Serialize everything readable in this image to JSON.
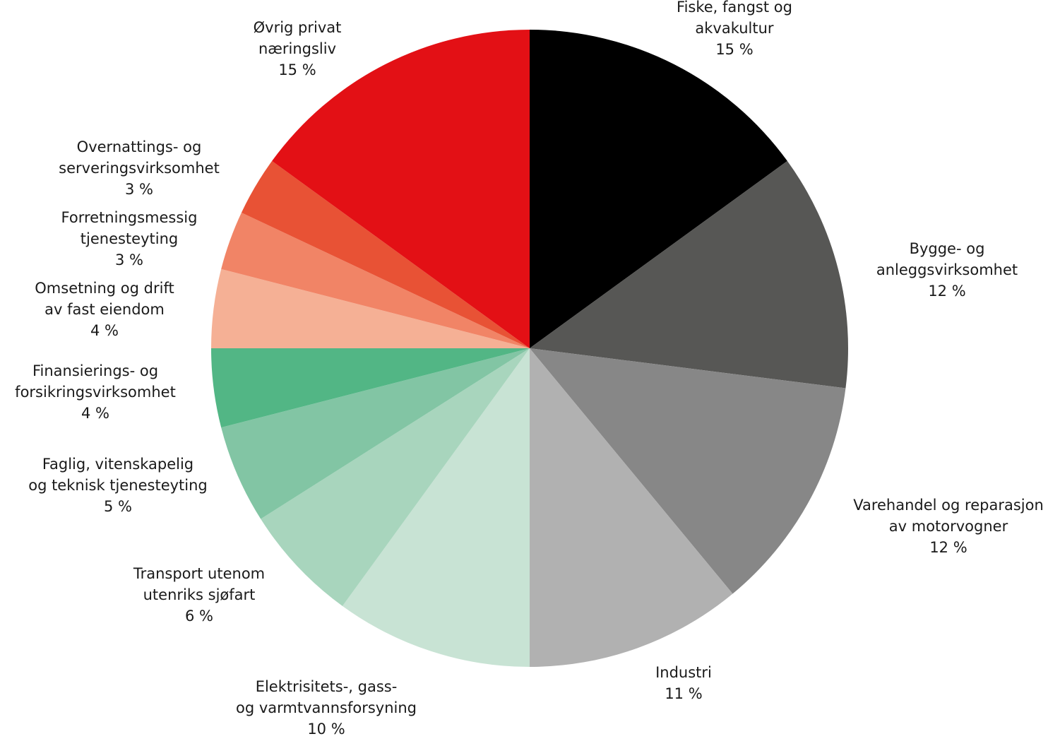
{
  "chart_data": {
    "type": "pie",
    "title": "",
    "slices": [
      {
        "name": [
          "Fiske, fangst og",
          "akvakultur"
        ],
        "value": 15,
        "value_label": "15 %",
        "color": "#000000"
      },
      {
        "name": [
          "Bygge- og",
          "anleggsvirksomhet"
        ],
        "value": 12,
        "value_label": "12 %",
        "color": "#575755"
      },
      {
        "name": [
          "Varehandel og reparasjon",
          "av motorvogner"
        ],
        "value": 12,
        "value_label": "12 %",
        "color": "#878787"
      },
      {
        "name": [
          "Industri"
        ],
        "value": 11,
        "value_label": "11 %",
        "color": "#b1b1b1"
      },
      {
        "name": [
          "Elektrisitets-, gass-",
          "og varmtvannsforsyning"
        ],
        "value": 10,
        "value_label": "10 %",
        "color": "#c8e3d4"
      },
      {
        "name": [
          "Transport utenom",
          "utenriks sjøfart"
        ],
        "value": 6,
        "value_label": "6 %",
        "color": "#a8d5bd"
      },
      {
        "name": [
          "Faglig, vitenskapelig",
          "og teknisk tjenesteyting"
        ],
        "value": 5,
        "value_label": "5 %",
        "color": "#82c5a4"
      },
      {
        "name": [
          "Finansierings- og",
          "forsikringsvirksomhet"
        ],
        "value": 4,
        "value_label": "4 %",
        "color": "#52b685"
      },
      {
        "name": [
          "Omsetning og drift",
          "av fast eiendom"
        ],
        "value": 4,
        "value_label": "4 %",
        "color": "#f5b095"
      },
      {
        "name": [
          "Forretningsmessig",
          "tjenesteyting"
        ],
        "value": 3,
        "value_label": "3 %",
        "color": "#f18466"
      },
      {
        "name": [
          "Overnattings- og",
          "serveringsvirksomhet"
        ],
        "value": 3,
        "value_label": "3 %",
        "color": "#e85235"
      },
      {
        "name": [
          "Øvrig privat",
          "næringsliv"
        ],
        "value": 15,
        "value_label": "15 %",
        "color": "#e31015"
      }
    ]
  }
}
